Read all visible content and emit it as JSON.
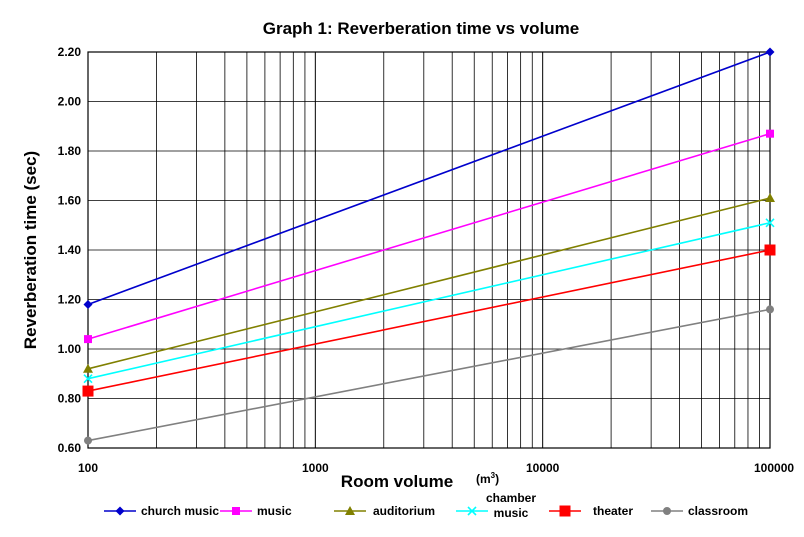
{
  "chart_data": {
    "type": "line",
    "title": "Graph 1: Reverberation time vs volume",
    "xlabel": "Room volume",
    "xunit": "m",
    "xunit_exp": "3",
    "ylabel": "Reverberation time (sec)",
    "x_scale": "log",
    "xlim": [
      100,
      100000
    ],
    "ylim": [
      0.6,
      2.2
    ],
    "x_ticks": [
      "100",
      "1000",
      "10000",
      "100000"
    ],
    "y_ticks": [
      "0.60",
      "0.80",
      "1.00",
      "1.20",
      "1.40",
      "1.60",
      "1.80",
      "2.00",
      "2.20"
    ],
    "grid": true,
    "legend_position": "bottom",
    "series": [
      {
        "name": "church music",
        "color": "#0000cc",
        "marker": "diamond",
        "x": [
          100,
          100000
        ],
        "y": [
          1.18,
          2.2
        ]
      },
      {
        "name": "music",
        "color": "#ff00ff",
        "marker": "square",
        "x": [
          100,
          100000
        ],
        "y": [
          1.04,
          1.87
        ]
      },
      {
        "name": "auditorium",
        "color": "#808000",
        "marker": "triangle",
        "x": [
          100,
          100000
        ],
        "y": [
          0.92,
          1.61
        ]
      },
      {
        "name": "chamber music",
        "color": "#00ffff",
        "marker": "x",
        "x": [
          100,
          100000
        ],
        "y": [
          0.88,
          1.51
        ]
      },
      {
        "name": "theater",
        "color": "#ff0000",
        "marker": "square-large",
        "x": [
          100,
          100000
        ],
        "y": [
          0.83,
          1.4
        ]
      },
      {
        "name": "classroom",
        "color": "#808080",
        "marker": "circle",
        "x": [
          100,
          100000
        ],
        "y": [
          0.63,
          1.16
        ]
      }
    ],
    "legend_lines": {
      "chamber music": [
        "chamber",
        "music"
      ]
    }
  }
}
